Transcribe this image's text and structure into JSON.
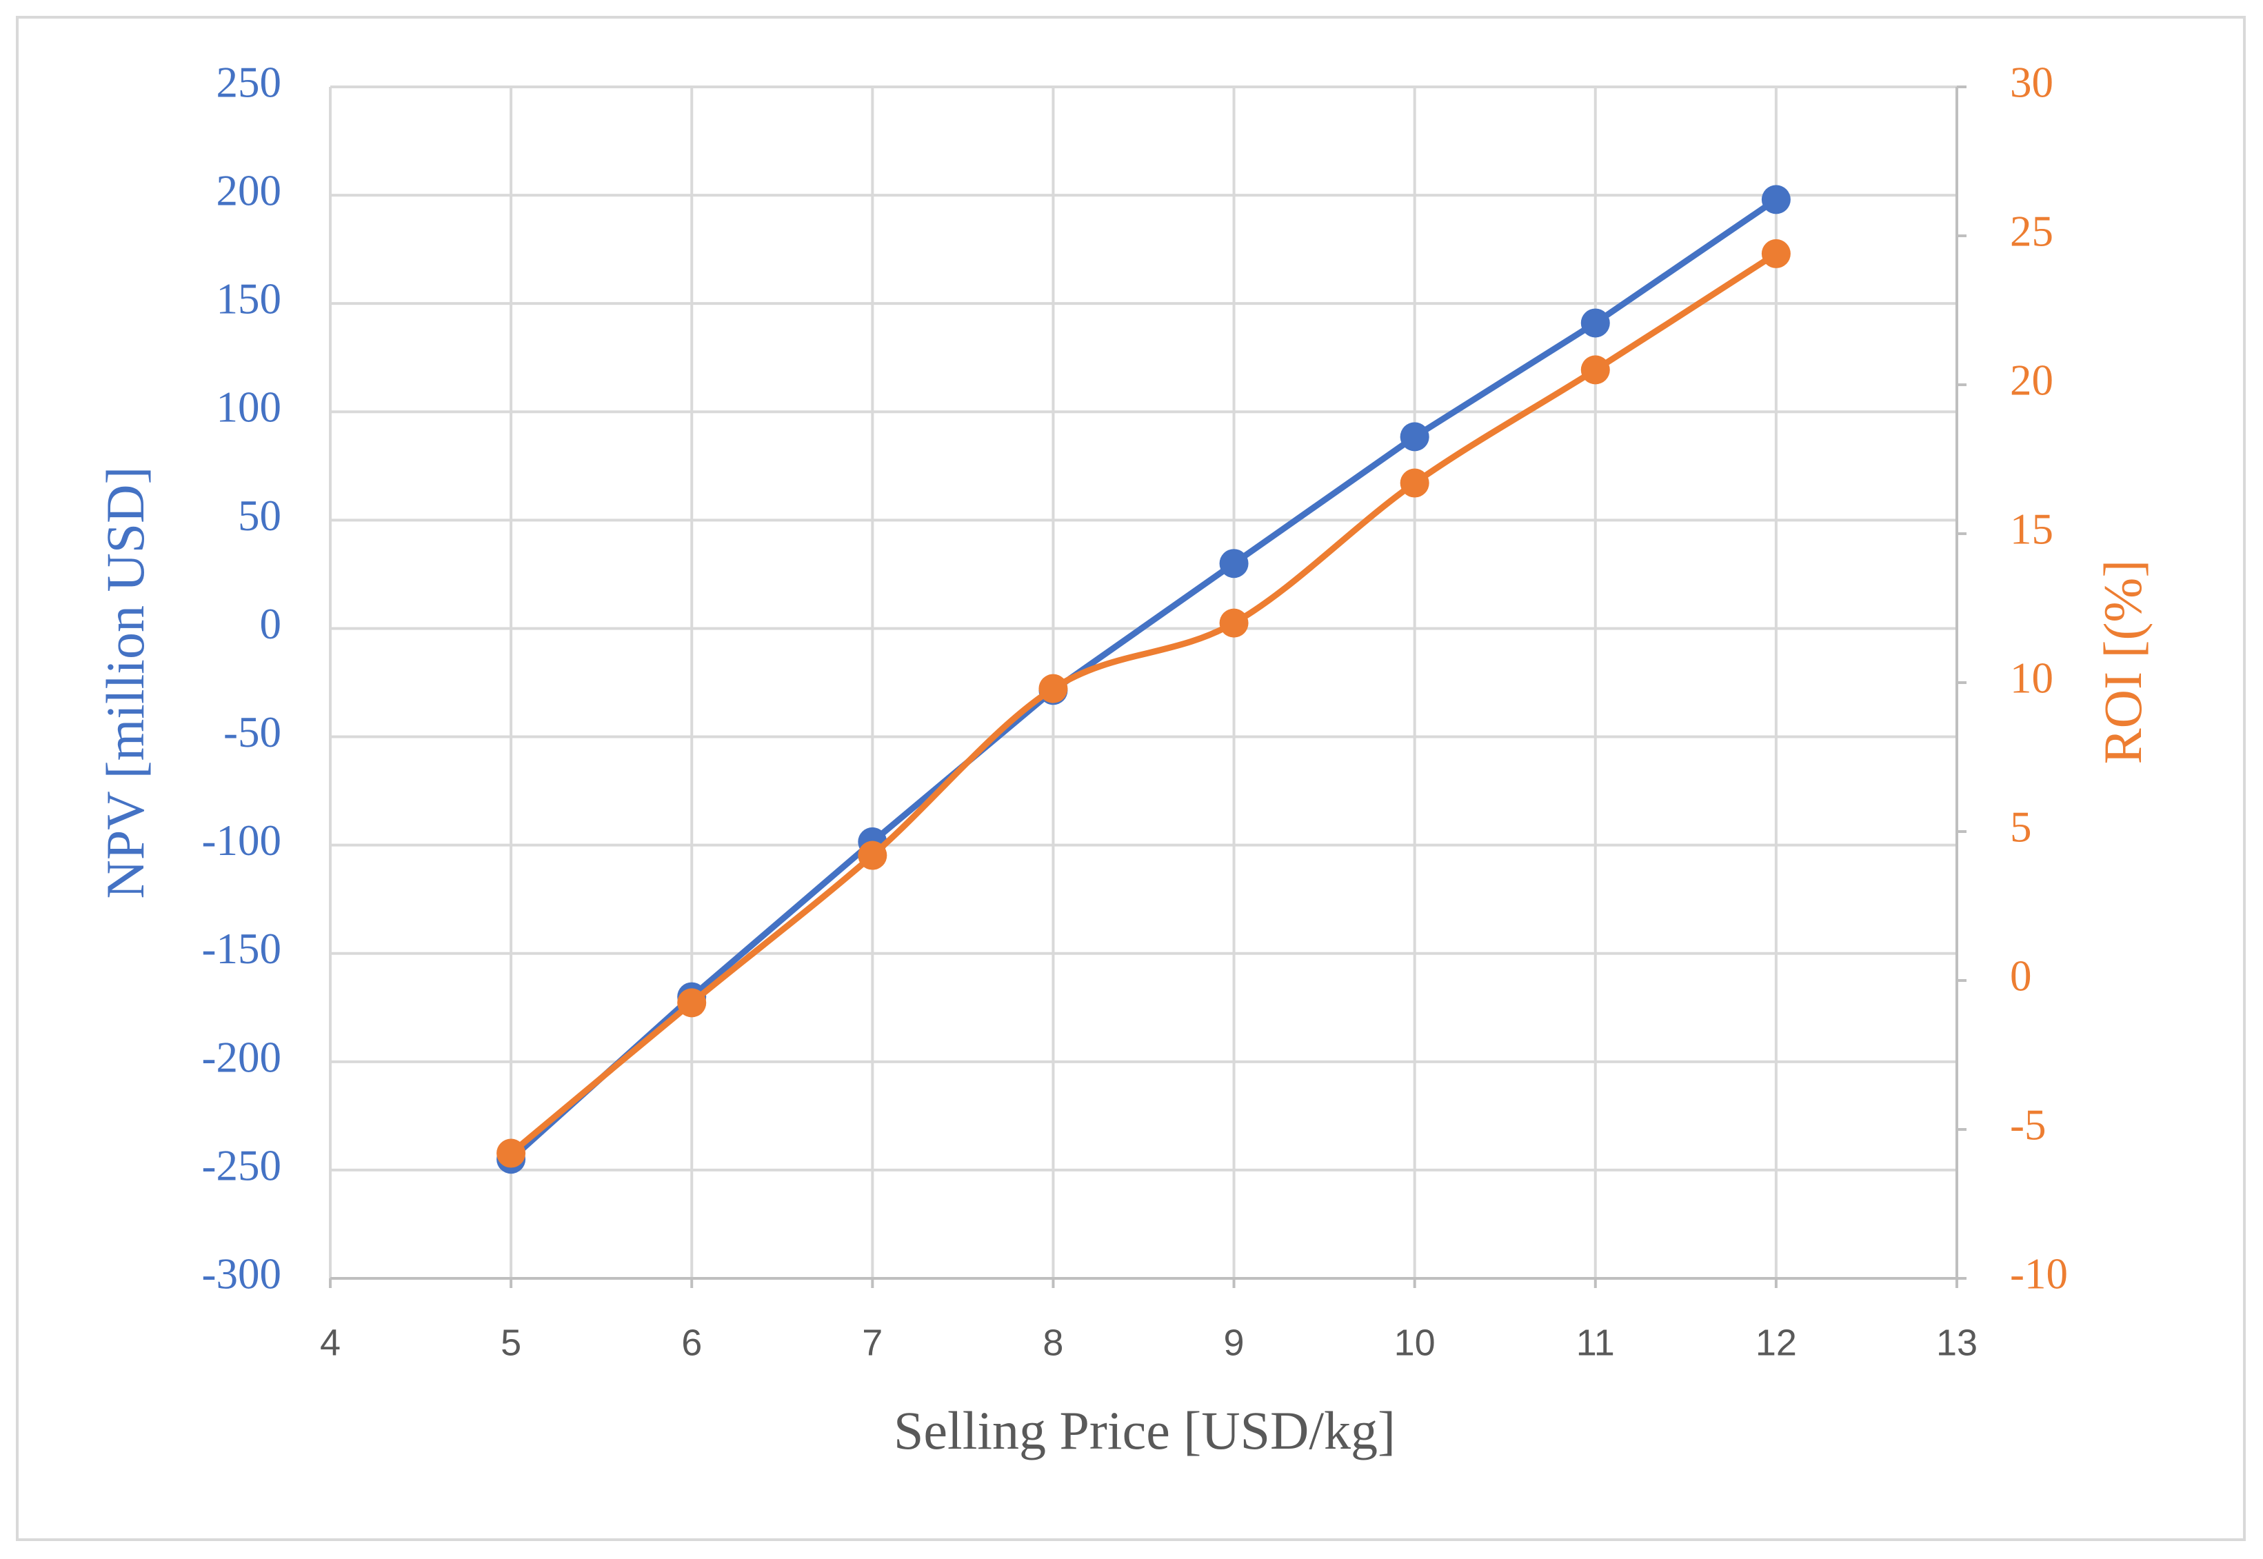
{
  "chart_data": {
    "type": "line",
    "x_label": "Selling Price [USD/kg]",
    "y_label": "NPV [million USD]",
    "y2_label": "ROI [(%]",
    "x": [
      5,
      6,
      7,
      8,
      9,
      10,
      11,
      12
    ],
    "xlim": [
      4,
      13
    ],
    "xticks": [
      4,
      5,
      6,
      7,
      8,
      9,
      10,
      11,
      12,
      13
    ],
    "ylim": [
      -300,
      250
    ],
    "yticks": [
      -300,
      -250,
      -200,
      -150,
      -100,
      -50,
      0,
      50,
      100,
      150,
      200,
      250
    ],
    "y2lim": [
      -10,
      30
    ],
    "y2ticks": [
      -10,
      -5,
      0,
      5,
      10,
      15,
      20,
      25,
      30
    ],
    "grid": true,
    "series": [
      {
        "name": "NPV",
        "color": "#4472c4",
        "smooth": false,
        "values": [
          -245,
          -170,
          -98.5,
          -28.6,
          30,
          88.5,
          141,
          198
        ]
      },
      {
        "name": "ROI",
        "color": "#ed7d31",
        "axis": "y2",
        "smooth": true,
        "values": [
          -5.8,
          -0.75,
          4.2,
          9.8,
          12,
          16.7,
          20.5,
          24.4
        ]
      }
    ]
  }
}
